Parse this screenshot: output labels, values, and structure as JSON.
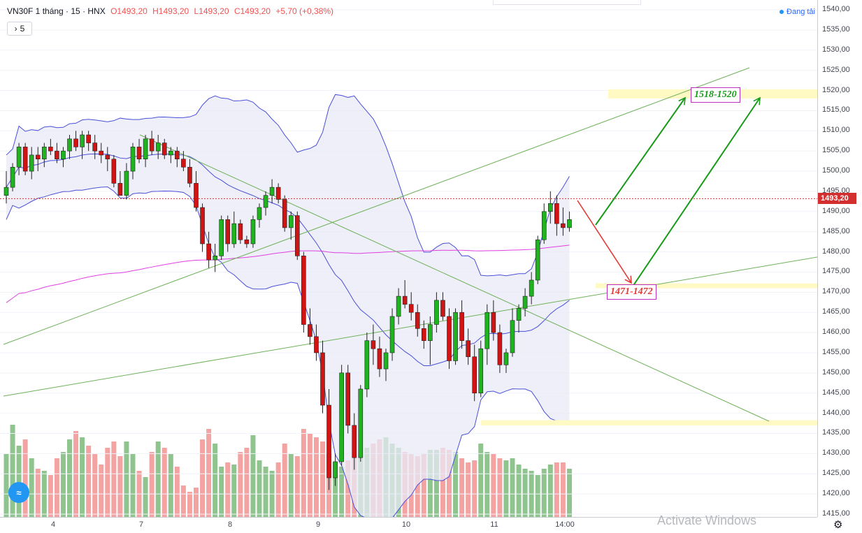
{
  "header": {
    "symbol": "VN30F 1 tháng · 15 · HNX",
    "open": "O1493,20",
    "high": "H1493,20",
    "low": "L1493,20",
    "close": "C1493,20",
    "change": "+5,70 (+0,38%)",
    "collapse_label": "5",
    "collapse_icon": "chevron-right-icon"
  },
  "status": {
    "text": "Đang tải"
  },
  "price_tag": "1493,20",
  "settings_icon": "gear-icon",
  "logo_icon": "tradingview-logo-icon",
  "watermark": "Activate Windows",
  "annotations": {
    "target_zone": "1518-1520",
    "support_zone": "1471-1472"
  },
  "colors": {
    "up": "#26a69a",
    "candle_up": "#1fb31f",
    "candle_down": "#d01414",
    "bollinger": "#4a4fd8",
    "band_fill": "#e8e9f6",
    "ma": "#e040e0",
    "trendline": "#6fb05a",
    "arrow_green": "#1a9a1a",
    "arrow_red": "#e53935",
    "zone": "#fff9c4",
    "vol_up": "#8fc48f",
    "vol_down": "#f4a3a3"
  },
  "chart_data": {
    "type": "candlestick",
    "ylim": [
      1414,
      1542
    ],
    "y_ticks": [
      "1540,00",
      "1535,00",
      "1530,00",
      "1525,00",
      "1520,00",
      "1515,00",
      "1510,00",
      "1505,00",
      "1500,00",
      "1495,00",
      "1490,00",
      "1485,00",
      "1480,00",
      "1475,00",
      "1470,00",
      "1465,00",
      "1460,00",
      "1455,00",
      "1450,00",
      "1445,00",
      "1440,00",
      "1435,00",
      "1430,00",
      "1425,00",
      "1420,00",
      "1415,00"
    ],
    "x_ticks": [
      "4",
      "7",
      "8",
      "9",
      "10",
      "11",
      "14:00"
    ],
    "last_price": 1493.2,
    "candles": [
      [
        1494,
        1500,
        1492,
        1496
      ],
      [
        1496,
        1502,
        1495,
        1501
      ],
      [
        1501,
        1507,
        1499,
        1506
      ],
      [
        1506,
        1507,
        1499,
        1500
      ],
      [
        1500,
        1506,
        1498,
        1504
      ],
      [
        1504,
        1506,
        1500,
        1503
      ],
      [
        1503,
        1507,
        1501,
        1506
      ],
      [
        1506,
        1508,
        1504,
        1505
      ],
      [
        1505,
        1507,
        1502,
        1503
      ],
      [
        1503,
        1506,
        1501,
        1505
      ],
      [
        1505,
        1509,
        1503,
        1508
      ],
      [
        1508,
        1510,
        1505,
        1506
      ],
      [
        1506,
        1510,
        1503,
        1509
      ],
      [
        1509,
        1510,
        1505,
        1507
      ],
      [
        1507,
        1509,
        1503,
        1505
      ],
      [
        1505,
        1507,
        1502,
        1504
      ],
      [
        1504,
        1506,
        1500,
        1503
      ],
      [
        1503,
        1504,
        1496,
        1497
      ],
      [
        1497,
        1500,
        1494,
        1494
      ],
      [
        1494,
        1502,
        1493,
        1500
      ],
      [
        1500,
        1507,
        1498,
        1506
      ],
      [
        1506,
        1508,
        1502,
        1503
      ],
      [
        1503,
        1509,
        1501,
        1508
      ],
      [
        1508,
        1510,
        1504,
        1505
      ],
      [
        1505,
        1509,
        1503,
        1507
      ],
      [
        1507,
        1508,
        1503,
        1504
      ],
      [
        1504,
        1506,
        1502,
        1505
      ],
      [
        1505,
        1506,
        1501,
        1503
      ],
      [
        1503,
        1505,
        1500,
        1501
      ],
      [
        1501,
        1503,
        1496,
        1497
      ],
      [
        1497,
        1500,
        1490,
        1491
      ],
      [
        1491,
        1492,
        1480,
        1482
      ],
      [
        1482,
        1485,
        1476,
        1478
      ],
      [
        1478,
        1482,
        1475,
        1479
      ],
      [
        1479,
        1489,
        1478,
        1488
      ],
      [
        1488,
        1489,
        1480,
        1482
      ],
      [
        1482,
        1490,
        1481,
        1487
      ],
      [
        1487,
        1488,
        1482,
        1483
      ],
      [
        1483,
        1484,
        1481,
        1482
      ],
      [
        1482,
        1489,
        1481,
        1488
      ],
      [
        1488,
        1492,
        1486,
        1491
      ],
      [
        1491,
        1495,
        1489,
        1494
      ],
      [
        1494,
        1498,
        1492,
        1496
      ],
      [
        1496,
        1497,
        1492,
        1493
      ],
      [
        1493,
        1494,
        1485,
        1486
      ],
      [
        1486,
        1490,
        1483,
        1489
      ],
      [
        1489,
        1490,
        1478,
        1479
      ],
      [
        1479,
        1480,
        1460,
        1462
      ],
      [
        1462,
        1466,
        1457,
        1459
      ],
      [
        1459,
        1462,
        1453,
        1455
      ],
      [
        1455,
        1458,
        1440,
        1442
      ],
      [
        1442,
        1446,
        1421,
        1424
      ],
      [
        1424,
        1430,
        1422,
        1428
      ],
      [
        1428,
        1452,
        1427,
        1450
      ],
      [
        1450,
        1452,
        1435,
        1437
      ],
      [
        1437,
        1440,
        1426,
        1429
      ],
      [
        1429,
        1447,
        1428,
        1446
      ],
      [
        1446,
        1460,
        1444,
        1458
      ],
      [
        1458,
        1462,
        1452,
        1456
      ],
      [
        1456,
        1459,
        1449,
        1451
      ],
      [
        1451,
        1456,
        1448,
        1455
      ],
      [
        1455,
        1466,
        1453,
        1464
      ],
      [
        1464,
        1471,
        1462,
        1469
      ],
      [
        1469,
        1473,
        1466,
        1467
      ],
      [
        1467,
        1470,
        1463,
        1465
      ],
      [
        1465,
        1467,
        1459,
        1461
      ],
      [
        1461,
        1463,
        1456,
        1458
      ],
      [
        1458,
        1464,
        1452,
        1462
      ],
      [
        1462,
        1470,
        1460,
        1468
      ],
      [
        1468,
        1470,
        1463,
        1464
      ],
      [
        1464,
        1466,
        1451,
        1453
      ],
      [
        1453,
        1466,
        1452,
        1465
      ],
      [
        1465,
        1468,
        1456,
        1458
      ],
      [
        1458,
        1461,
        1452,
        1454
      ],
      [
        1454,
        1457,
        1443,
        1445
      ],
      [
        1445,
        1458,
        1444,
        1456
      ],
      [
        1456,
        1467,
        1452,
        1465
      ],
      [
        1465,
        1468,
        1458,
        1460
      ],
      [
        1460,
        1462,
        1450,
        1452
      ],
      [
        1452,
        1456,
        1450,
        1455
      ],
      [
        1455,
        1466,
        1454,
        1463
      ],
      [
        1463,
        1467,
        1460,
        1466
      ],
      [
        1466,
        1471,
        1464,
        1469
      ],
      [
        1469,
        1475,
        1467,
        1473
      ],
      [
        1473,
        1484,
        1472,
        1483
      ],
      [
        1483,
        1492,
        1482,
        1490
      ],
      [
        1490,
        1495,
        1487,
        1492
      ],
      [
        1492,
        1494,
        1484,
        1487
      ],
      [
        1487,
        1491,
        1484,
        1486
      ],
      [
        1486,
        1490,
        1485,
        1488
      ]
    ],
    "volumes": [
      30,
      44,
      34,
      37,
      28,
      23,
      22,
      20,
      28,
      31,
      37,
      41,
      38,
      34,
      30,
      25,
      33,
      36,
      29,
      36,
      30,
      22,
      19,
      31,
      36,
      33,
      30,
      24,
      15,
      12,
      14,
      37,
      42,
      35,
      24,
      26,
      25,
      31,
      33,
      39,
      27,
      24,
      22,
      26,
      35,
      30,
      29,
      42,
      40,
      38,
      36,
      30,
      26,
      24,
      27,
      30,
      31,
      33,
      35,
      37,
      38,
      35,
      33,
      31,
      30,
      29,
      30,
      32,
      32,
      33,
      32,
      31,
      28,
      26,
      27,
      35,
      31,
      30,
      28,
      27,
      28,
      25,
      23,
      22,
      20,
      23,
      25,
      26,
      26,
      23
    ]
  }
}
